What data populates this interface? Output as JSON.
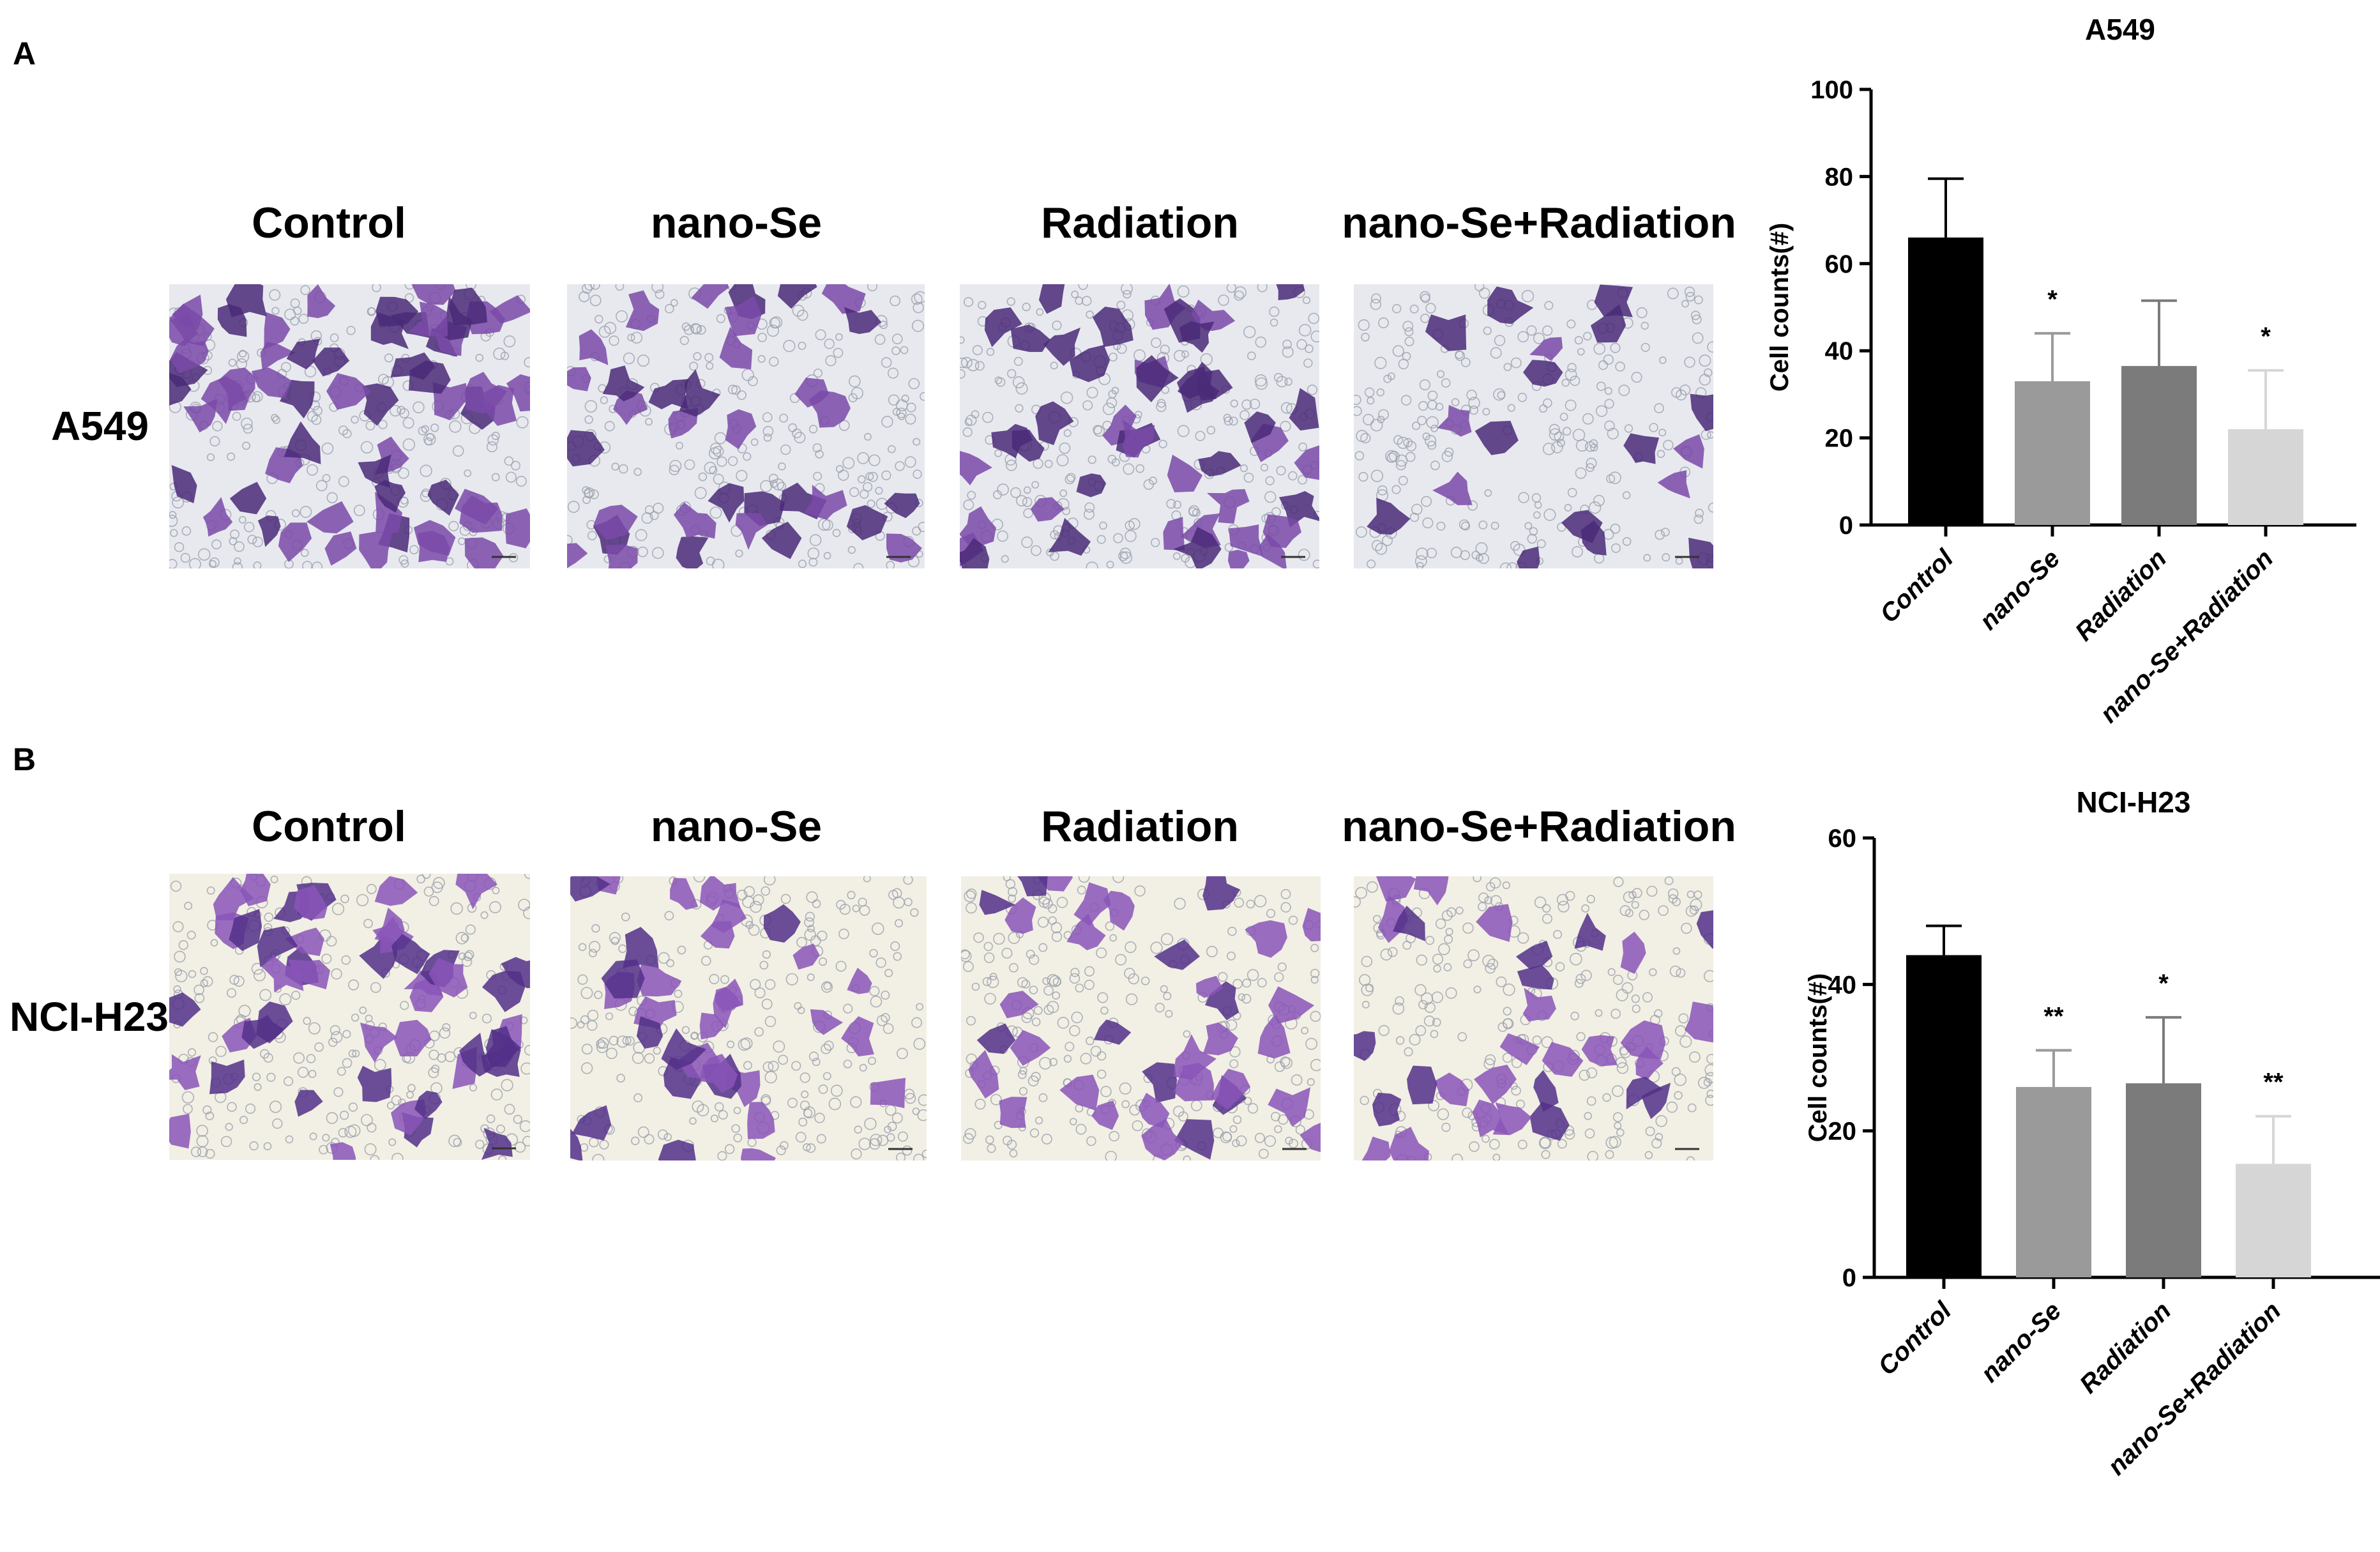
{
  "panel_a": {
    "letter": "A",
    "row_label": "A549",
    "columns": [
      "Control",
      "nano-Se",
      "Radiation",
      "nano-Se+Radiation"
    ],
    "image_colors": {
      "background": "#e8e9ef",
      "stain": "#7a4aa8",
      "stain_dark": "#4a2a78"
    }
  },
  "panel_b": {
    "letter": "B",
    "row_label": "NCI-H23",
    "columns": [
      "Control",
      "nano-Se",
      "Radiation",
      "nano-Se+Radiation"
    ],
    "image_colors": {
      "background": "#f2efe4",
      "stain": "#8a55b8",
      "stain_dark": "#523088"
    }
  },
  "chart_data": [
    {
      "type": "bar",
      "title": "A549",
      "ylabel": "Cell counts(#)",
      "xlabel": "",
      "categories": [
        "Control",
        "nano-Se",
        "Radiation",
        "nano-Se+Radiation"
      ],
      "values": [
        66,
        33,
        36.5,
        22
      ],
      "errors": [
        13.5,
        11,
        15,
        13.5
      ],
      "significance": [
        "",
        "*",
        "",
        "*"
      ],
      "ylim": [
        0,
        100
      ],
      "yticks": [
        "0",
        "20",
        "40",
        "60",
        "80",
        "100"
      ],
      "colors": [
        "#000000",
        "#9a9a9a",
        "#7b7b7b",
        "#d6d6d6"
      ],
      "grid": false
    },
    {
      "type": "bar",
      "title": "NCI-H23",
      "ylabel": "Cell counts(#)",
      "xlabel": "",
      "categories": [
        "Control",
        "nano-Se",
        "Radiation",
        "nano-Se+Radiation"
      ],
      "values": [
        44,
        26,
        26.5,
        15.5
      ],
      "errors": [
        4,
        5,
        9,
        6.5
      ],
      "significance": [
        "",
        "**",
        "*",
        "**"
      ],
      "ylim": [
        0,
        60
      ],
      "yticks": [
        "0",
        "20",
        "40",
        "60"
      ],
      "colors": [
        "#000000",
        "#9a9a9a",
        "#7b7b7b",
        "#d6d6d6"
      ],
      "grid": false
    }
  ]
}
